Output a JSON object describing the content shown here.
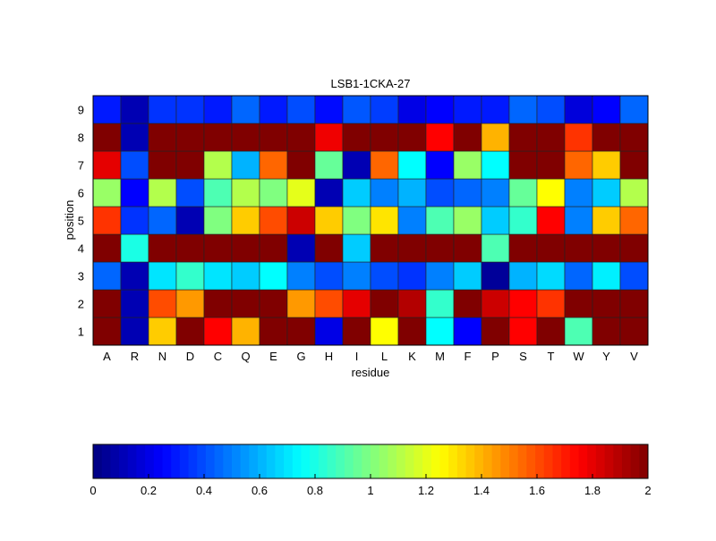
{
  "chart_data": {
    "type": "heatmap",
    "title": "LSB1-1CKA-27",
    "xlabel": "residue",
    "ylabel": "position",
    "x_categories": [
      "A",
      "R",
      "N",
      "D",
      "C",
      "Q",
      "E",
      "G",
      "H",
      "I",
      "L",
      "K",
      "M",
      "F",
      "P",
      "S",
      "T",
      "W",
      "Y",
      "V"
    ],
    "y_categories": [
      "1",
      "2",
      "3",
      "4",
      "5",
      "6",
      "7",
      "8",
      "9"
    ],
    "colormap": "jet",
    "clim": [
      0,
      2
    ],
    "colorbar": {
      "placement": "bottom",
      "ticks": [
        "0",
        "0.2",
        "0.4",
        "0.6",
        "0.8",
        "1",
        "1.2",
        "1.4",
        "1.6",
        "1.8",
        "2"
      ],
      "tick_values": [
        0,
        0.2,
        0.4,
        0.6,
        0.8,
        1.0,
        1.2,
        1.4,
        1.6,
        1.8,
        2.0
      ]
    },
    "values_by_position": {
      "9": [
        0.3,
        0.1,
        0.35,
        0.35,
        0.3,
        0.45,
        0.3,
        0.4,
        0.27,
        0.42,
        0.37,
        0.2,
        0.25,
        0.3,
        0.3,
        0.45,
        0.4,
        0.18,
        0.25,
        0.45
      ],
      "8": [
        2,
        0.1,
        2,
        2,
        2,
        2,
        2,
        2,
        1.78,
        2,
        2,
        2,
        1.75,
        2,
        1.4,
        2,
        2,
        1.65,
        2,
        2
      ],
      "7": [
        1.8,
        0.4,
        2,
        2,
        1.1,
        0.6,
        1.55,
        2,
        0.95,
        0.1,
        1.55,
        0.75,
        0.25,
        1.05,
        0.75,
        2,
        2,
        1.55,
        1.35,
        2
      ],
      "6": [
        1.05,
        0.25,
        1.1,
        0.4,
        0.9,
        1.1,
        1.0,
        1.2,
        0.1,
        0.65,
        0.5,
        0.6,
        0.4,
        0.45,
        0.5,
        0.95,
        1.25,
        0.5,
        0.65,
        1.1
      ],
      "5": [
        1.65,
        0.35,
        0.45,
        0.1,
        1.0,
        1.35,
        1.6,
        1.85,
        1.35,
        1.0,
        1.3,
        0.5,
        0.9,
        1.05,
        0.65,
        0.85,
        1.75,
        0.5,
        1.35,
        1.55
      ],
      "4": [
        2,
        0.8,
        2,
        2,
        2,
        2,
        2,
        0.1,
        2,
        0.65,
        2,
        2,
        2,
        2,
        0.9,
        2,
        2,
        2,
        2,
        2
      ],
      "3": [
        0.45,
        0.1,
        0.7,
        0.85,
        0.7,
        0.65,
        0.75,
        0.5,
        0.4,
        0.5,
        0.4,
        0.35,
        0.5,
        0.65,
        0.05,
        0.6,
        0.68,
        0.45,
        0.72,
        0.4
      ],
      "2": [
        2,
        0.1,
        1.6,
        1.45,
        2,
        2,
        2,
        1.45,
        1.6,
        1.8,
        2,
        1.9,
        0.85,
        2,
        1.85,
        1.75,
        1.65,
        2,
        2,
        2
      ],
      "1": [
        2,
        0.1,
        1.35,
        2,
        1.75,
        1.4,
        2,
        2,
        0.2,
        2,
        1.25,
        2,
        0.75,
        0.25,
        2,
        1.75,
        2,
        0.9,
        2,
        2
      ]
    }
  }
}
